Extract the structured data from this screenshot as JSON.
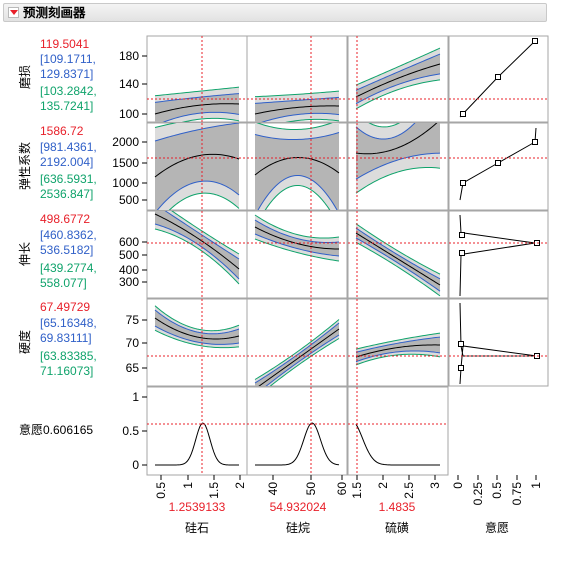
{
  "header": {
    "title": "预测刻画器"
  },
  "colors": {
    "red": "#e8202a",
    "blue": "#3060c8",
    "green": "#0fa36b",
    "band_outer": "#dcdcdc",
    "band_inner": "#b5b5b5"
  },
  "responses": [
    {
      "label": "磨损",
      "value": "119.5041",
      "ci": [
        "[109.1711,",
        "129.8371]"
      ],
      "pi": [
        "[103.2842,",
        "135.7241]"
      ]
    },
    {
      "label": "弹性系数",
      "value": "1586.72",
      "ci": [
        "[981.4361,",
        "2192.004]"
      ],
      "pi": [
        "[636.5931,",
        "2536.847]"
      ]
    },
    {
      "label": "伸长",
      "value": "498.6772",
      "ci": [
        "[460.8362,",
        "536.5182]"
      ],
      "pi": [
        "[439.2774,",
        "558.077]"
      ]
    },
    {
      "label": "硬度",
      "value": "67.49729",
      "ci": [
        "[65.16348,",
        "69.83111]"
      ],
      "pi": [
        "[63.83385,",
        "71.16073]"
      ]
    }
  ],
  "desirability": {
    "label": "意愿",
    "value": "0.606165"
  },
  "factors": [
    {
      "name": "硅石",
      "value": "1.2539133",
      "ticks": [
        "0.5",
        "1",
        "1.5",
        "2"
      ]
    },
    {
      "name": "硅烷",
      "value": "54.932024",
      "ticks": [
        "40",
        "50",
        "60"
      ]
    },
    {
      "name": "硫磺",
      "value": "1.4835",
      "ticks": [
        "1.5",
        "2",
        "2.5",
        "3"
      ]
    },
    {
      "name": "意愿",
      "value": "",
      "ticks": [
        "0",
        "0.25",
        "0.5",
        "0.75",
        "1"
      ]
    }
  ],
  "row_ticks": [
    [
      "100",
      "120",
      "140",
      "160",
      "180"
    ],
    [
      "500",
      "1000",
      "1500",
      "2000"
    ],
    [
      "300",
      "400",
      "500",
      "600"
    ],
    [
      "65",
      "70",
      "75"
    ],
    [
      "0",
      "0.5",
      "1"
    ]
  ]
}
